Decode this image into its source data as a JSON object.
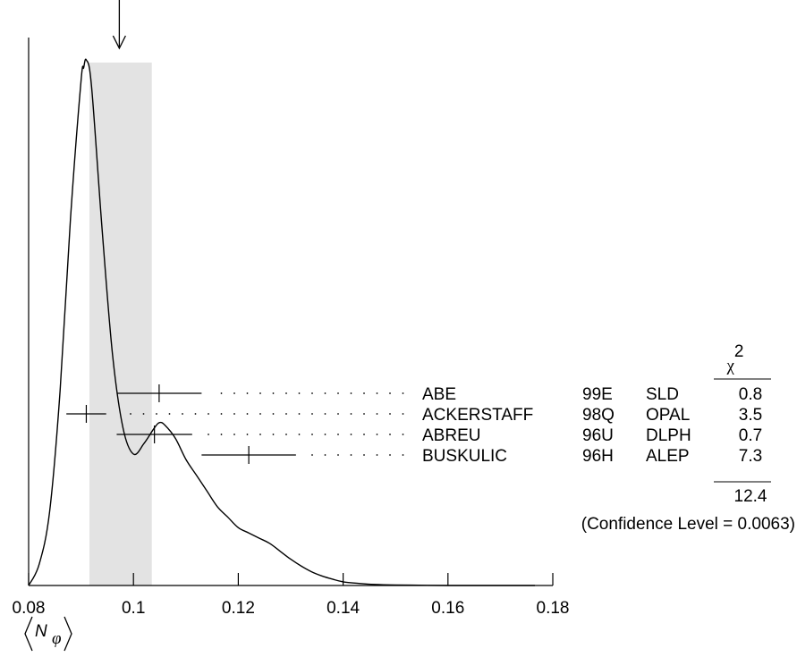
{
  "chart_data": {
    "type": "ideogram",
    "xlim": [
      0.08,
      0.18
    ],
    "xticks": [
      "0.08",
      "0.1",
      "0.12",
      "0.14",
      "0.16",
      "0.18"
    ],
    "xlabel": {
      "base": "N",
      "sub": "φ"
    },
    "weighted_average": 0.0973,
    "band": [
      0.0916,
      0.1035
    ],
    "curve": [
      [
        0.08,
        0.0
      ],
      [
        0.082,
        0.04
      ],
      [
        0.084,
        0.14
      ],
      [
        0.086,
        0.37
      ],
      [
        0.088,
        0.7
      ],
      [
        0.09,
        0.96
      ],
      [
        0.0905,
        0.985
      ],
      [
        0.091,
        1.0
      ],
      [
        0.092,
        0.95
      ],
      [
        0.094,
        0.68
      ],
      [
        0.096,
        0.44
      ],
      [
        0.098,
        0.3
      ],
      [
        0.1,
        0.25
      ],
      [
        0.102,
        0.27
      ],
      [
        0.104,
        0.3
      ],
      [
        0.105,
        0.31
      ],
      [
        0.106,
        0.305
      ],
      [
        0.108,
        0.28
      ],
      [
        0.11,
        0.24
      ],
      [
        0.112,
        0.21
      ],
      [
        0.114,
        0.18
      ],
      [
        0.116,
        0.15
      ],
      [
        0.118,
        0.13
      ],
      [
        0.12,
        0.11
      ],
      [
        0.122,
        0.1
      ],
      [
        0.124,
        0.09
      ],
      [
        0.126,
        0.08
      ],
      [
        0.128,
        0.065
      ],
      [
        0.13,
        0.05
      ],
      [
        0.132,
        0.037
      ],
      [
        0.134,
        0.026
      ],
      [
        0.136,
        0.018
      ],
      [
        0.138,
        0.012
      ],
      [
        0.14,
        0.007
      ],
      [
        0.143,
        0.004
      ],
      [
        0.146,
        0.002
      ],
      [
        0.15,
        0.001
      ],
      [
        0.156,
        0.0004
      ],
      [
        0.16,
        0.0
      ]
    ],
    "measurements": [
      {
        "name": "ABE",
        "ref": "99E",
        "exp": "SLD",
        "value": 0.1049,
        "err": 0.0081,
        "chi2": "0.8"
      },
      {
        "name": "ACKERSTAFF",
        "ref": "98Q",
        "exp": "OPAL",
        "value": 0.091,
        "err": 0.0038,
        "chi2": "3.5"
      },
      {
        "name": "ABREU",
        "ref": "96U",
        "exp": "DLPH",
        "value": 0.104,
        "err": 0.0072,
        "chi2": "0.7"
      },
      {
        "name": "BUSKULIC",
        "ref": "96H",
        "exp": "ALEP",
        "value": 0.122,
        "err": 0.009,
        "chi2": "7.3"
      }
    ],
    "chi2_header": {
      "symbol": "χ",
      "sup": "2"
    },
    "chi2_total": "12.4",
    "confidence_text": "(Confidence Level = 0.0063)"
  }
}
